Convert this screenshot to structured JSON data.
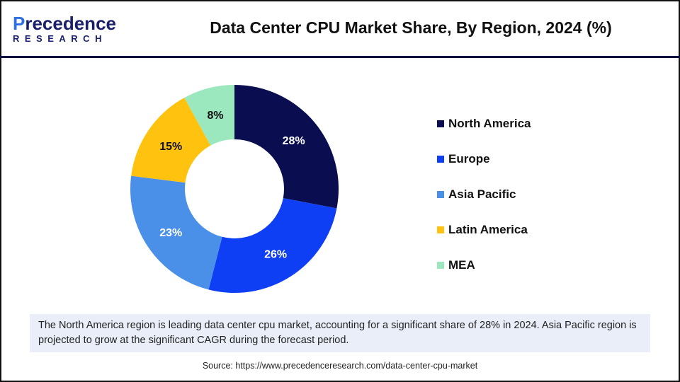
{
  "logo": {
    "line1_a": "P",
    "line1_b": "recedence",
    "line2": "RESEARCH"
  },
  "title": "Data Center CPU Market Share, By Region, 2024 (%)",
  "chart_data": {
    "type": "pie",
    "subtype": "donut",
    "title": "Data Center CPU Market Share, By Region, 2024 (%)",
    "categories": [
      "North America",
      "Europe",
      "Asia Pacific",
      "Latin America",
      "MEA"
    ],
    "values": [
      28,
      26,
      23,
      15,
      8
    ],
    "labels": [
      "28%",
      "26%",
      "23%",
      "15%",
      "8%"
    ],
    "colors": [
      "#0a0d4f",
      "#0f3ff5",
      "#4a90e8",
      "#ffc20e",
      "#9be8bf"
    ],
    "legend_position": "right"
  },
  "caption": "The North America region is leading data center cpu market, accounting for a significant share of 28% in 2024. Asia Pacific region is projected to grow at the significant CAGR during the forecast period.",
  "source": "Source: https://www.precedenceresearch.com/data-center-cpu-market"
}
